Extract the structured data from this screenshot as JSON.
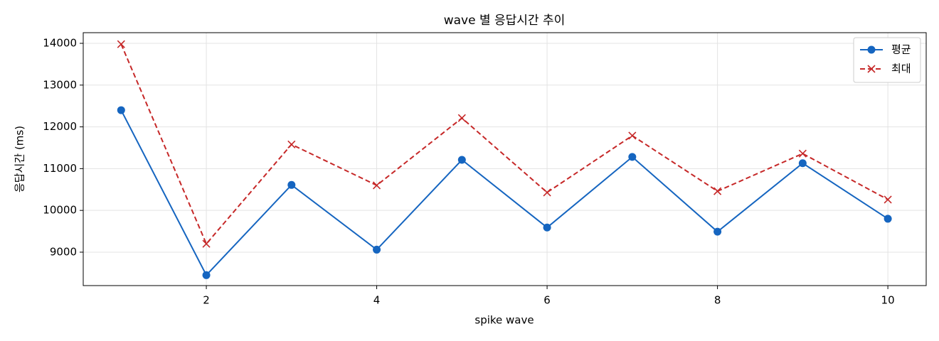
{
  "chart_data": {
    "type": "line",
    "title": "wave 별 응답시간 추이",
    "xlabel": "spike wave",
    "ylabel": "응답시간 (ms)",
    "x": [
      1,
      2,
      3,
      4,
      5,
      6,
      7,
      8,
      9,
      10
    ],
    "series": [
      {
        "name": "평균",
        "color": "#1565c0",
        "marker": "circle",
        "linestyle": "solid",
        "values": [
          12400,
          8450,
          10610,
          9060,
          11210,
          9590,
          11280,
          9490,
          11130,
          9800
        ]
      },
      {
        "name": "최대",
        "color": "#c62828",
        "marker": "x",
        "linestyle": "dashed",
        "values": [
          13980,
          9200,
          11580,
          10600,
          12210,
          10430,
          11790,
          10460,
          11360,
          10260
        ]
      }
    ],
    "xlim": [
      0.555,
      10.45
    ],
    "ylim": [
      8200,
      14255
    ],
    "xticks": [
      2,
      4,
      6,
      8,
      10
    ],
    "yticks": [
      9000,
      10000,
      11000,
      12000,
      13000,
      14000
    ],
    "grid": true,
    "legend": "upper right"
  }
}
